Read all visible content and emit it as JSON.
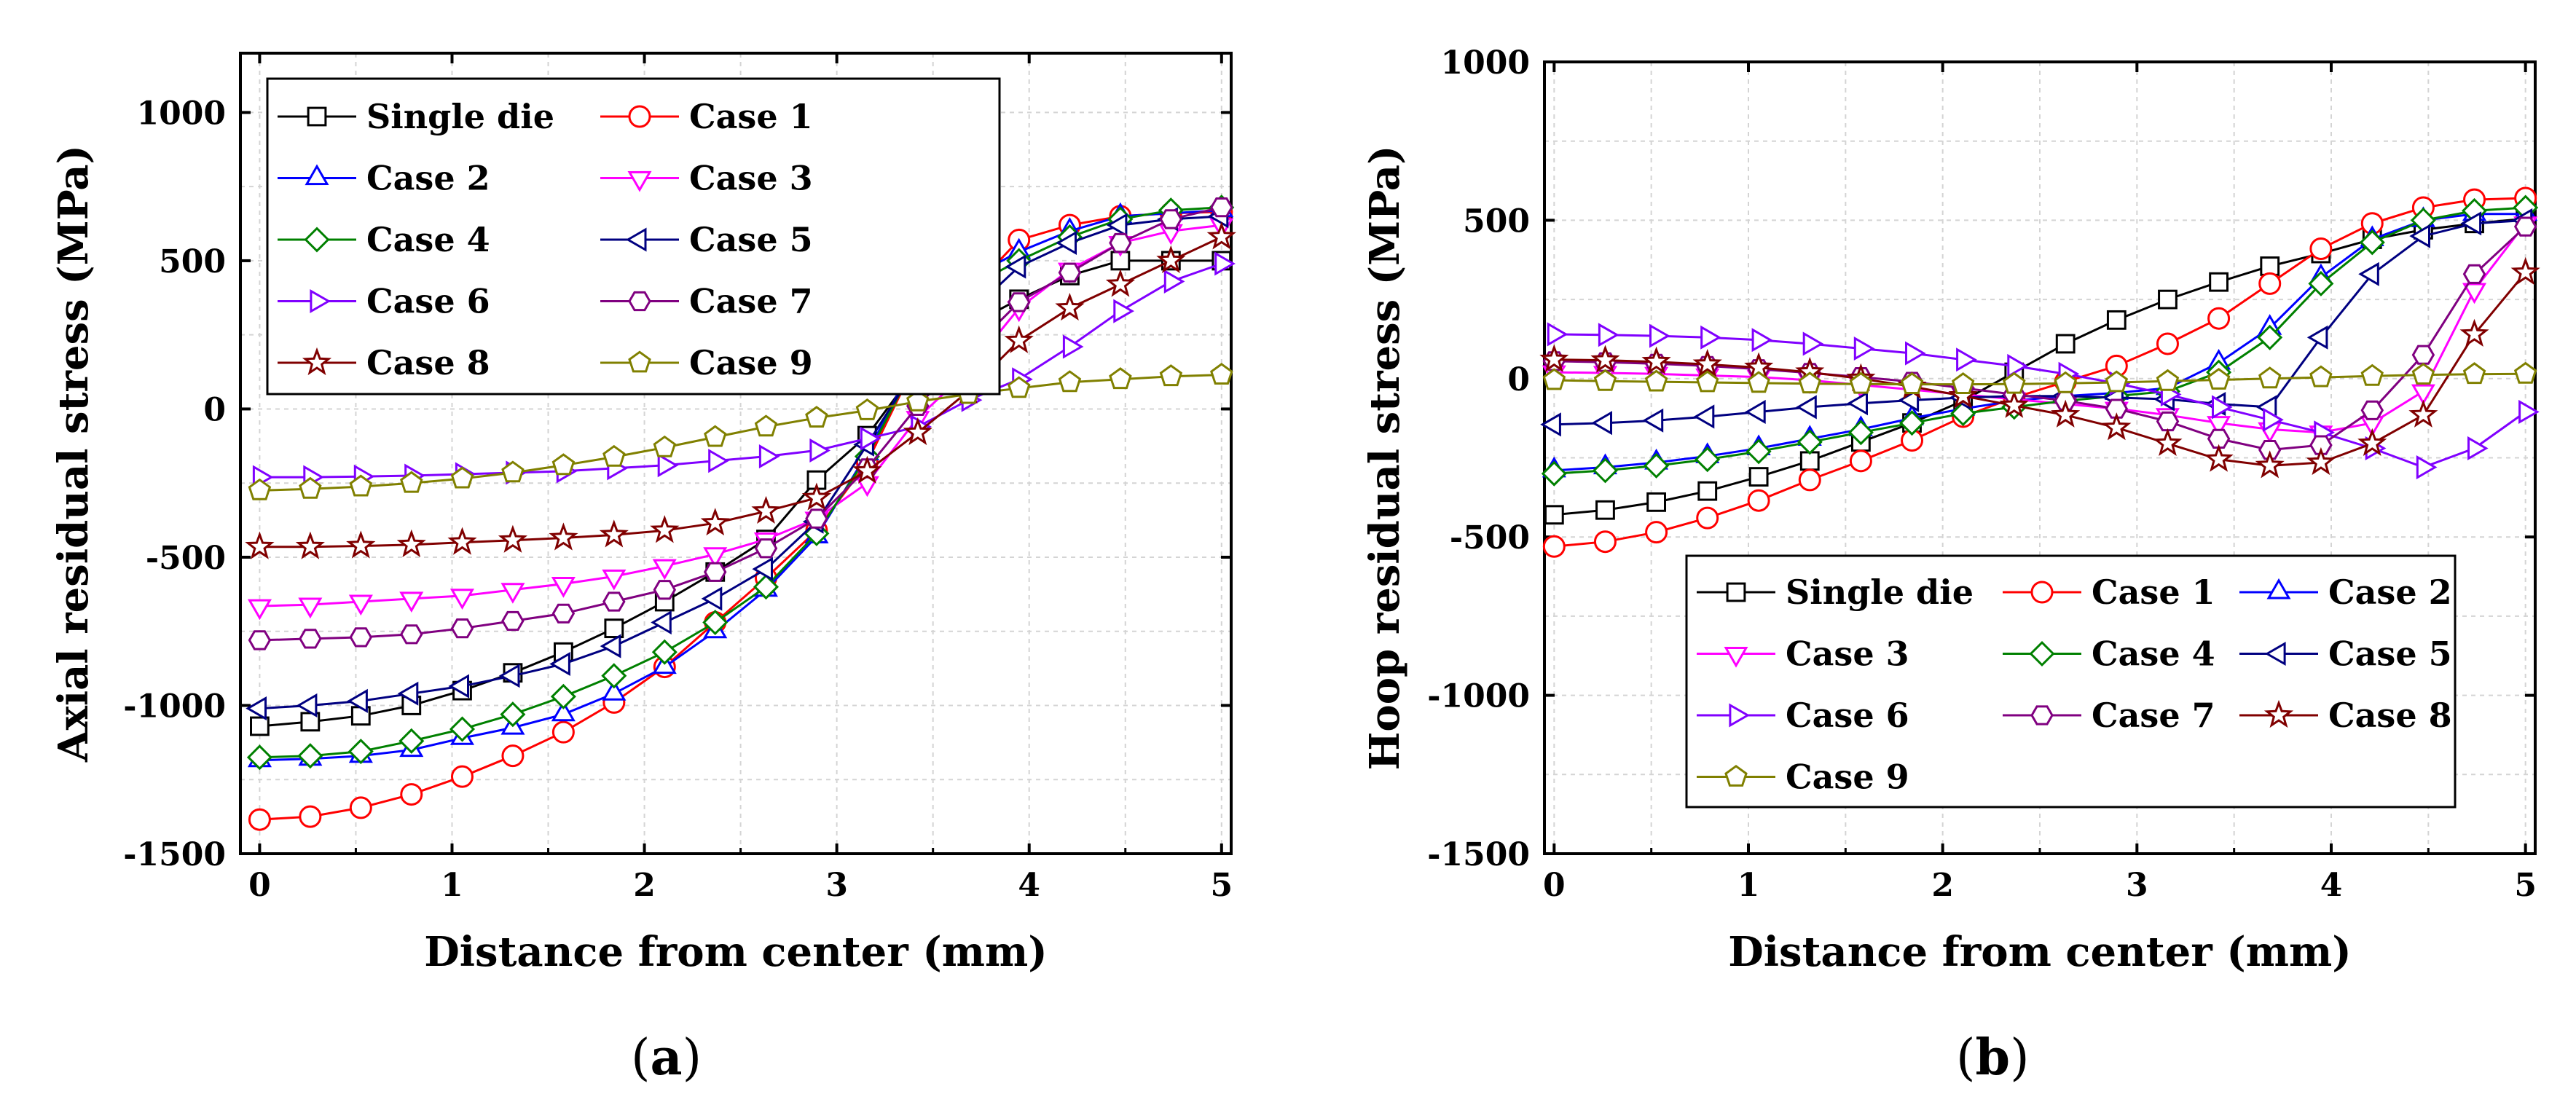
{
  "chart_data": [
    {
      "type": "line",
      "panel_caption": "(a)",
      "caption_letter": "a",
      "xlabel": "Distance from center (mm)",
      "ylabel": "Axial residual stress (MPa)",
      "xlim": [
        -0.1,
        5.05
      ],
      "ylim": [
        -1500,
        1200
      ],
      "xticks": [
        0,
        1,
        2,
        3,
        4,
        5
      ],
      "yticks": [
        -1500,
        -1000,
        -500,
        0,
        500,
        1000
      ],
      "legend_position": "top-left",
      "x": [
        0,
        0.263,
        0.526,
        0.789,
        1.053,
        1.316,
        1.579,
        1.842,
        2.105,
        2.368,
        2.632,
        2.895,
        3.158,
        3.421,
        3.684,
        3.947,
        4.211,
        4.474,
        4.737,
        5.0
      ],
      "series": [
        {
          "name": "Single die",
          "color": "#000000",
          "marker": "square",
          "values": [
            -1070,
            -1055,
            -1035,
            -1000,
            -950,
            -890,
            -820,
            -740,
            -650,
            -550,
            -440,
            -240,
            -90,
            140,
            280,
            370,
            450,
            500,
            500,
            500
          ]
        },
        {
          "name": "Case 1",
          "color": "#ff0000",
          "marker": "circle",
          "values": [
            -1385,
            -1375,
            -1345,
            -1300,
            -1240,
            -1170,
            -1090,
            -990,
            -870,
            -720,
            -570,
            -410,
            -180,
            170,
            390,
            570,
            620,
            650,
            660,
            665
          ]
        },
        {
          "name": "Case 2",
          "color": "#0000ff",
          "marker": "triangle-up",
          "values": [
            -1185,
            -1180,
            -1170,
            -1150,
            -1110,
            -1075,
            -1030,
            -960,
            -870,
            -750,
            -610,
            -430,
            -150,
            180,
            440,
            530,
            600,
            650,
            660,
            670
          ]
        },
        {
          "name": "Case 3",
          "color": "#ff00ff",
          "marker": "triangle-down",
          "values": [
            -665,
            -660,
            -650,
            -640,
            -630,
            -610,
            -590,
            -565,
            -530,
            -490,
            -440,
            -370,
            -250,
            -30,
            130,
            340,
            470,
            560,
            600,
            620
          ]
        },
        {
          "name": "Case 4",
          "color": "#008000",
          "marker": "diamond",
          "values": [
            -1175,
            -1170,
            -1155,
            -1120,
            -1080,
            -1030,
            -970,
            -900,
            -820,
            -720,
            -600,
            -420,
            -160,
            170,
            410,
            500,
            580,
            640,
            670,
            680
          ]
        },
        {
          "name": "Case 5",
          "color": "#000080",
          "marker": "triangle-left",
          "values": [
            -1010,
            -1000,
            -985,
            -960,
            -935,
            -900,
            -860,
            -800,
            -720,
            -640,
            -540,
            -380,
            -120,
            150,
            320,
            480,
            560,
            620,
            640,
            650
          ]
        },
        {
          "name": "Case 6",
          "color": "#8000ff",
          "marker": "triangle-right",
          "values": [
            -230,
            -230,
            -228,
            -225,
            -220,
            -215,
            -210,
            -200,
            -190,
            -175,
            -160,
            -140,
            -100,
            -60,
            30,
            100,
            210,
            330,
            430,
            490
          ]
        },
        {
          "name": "Case 7",
          "color": "#800080",
          "marker": "hexagon",
          "values": [
            -780,
            -775,
            -770,
            -760,
            -740,
            -715,
            -690,
            -650,
            -610,
            -550,
            -470,
            -370,
            -200,
            10,
            190,
            360,
            460,
            560,
            640,
            680
          ]
        },
        {
          "name": "Case 8",
          "color": "#800000",
          "marker": "star",
          "values": [
            -465,
            -465,
            -462,
            -458,
            -450,
            -443,
            -435,
            -425,
            -410,
            -385,
            -345,
            -300,
            -210,
            -80,
            60,
            230,
            340,
            420,
            500,
            580
          ]
        },
        {
          "name": "Case 9",
          "color": "#808000",
          "marker": "pentagon",
          "values": [
            -275,
            -270,
            -262,
            -250,
            -235,
            -215,
            -190,
            -162,
            -130,
            -95,
            -60,
            -30,
            -5,
            25,
            50,
            70,
            90,
            100,
            110,
            115
          ]
        }
      ]
    },
    {
      "type": "line",
      "panel_caption": "(b)",
      "caption_letter": "b",
      "xlabel": "Distance from center (mm)",
      "ylabel": "Hoop residual stress (MPa)",
      "xlim": [
        -0.05,
        5.05
      ],
      "ylim": [
        -1500,
        1000
      ],
      "xticks": [
        0,
        1,
        2,
        3,
        4,
        5
      ],
      "yticks": [
        -1500,
        -1000,
        -500,
        0,
        500,
        1000
      ],
      "legend_position": "bottom-center",
      "x": [
        0,
        0.263,
        0.526,
        0.789,
        1.053,
        1.316,
        1.579,
        1.842,
        2.105,
        2.368,
        2.632,
        2.895,
        3.158,
        3.421,
        3.684,
        3.947,
        4.211,
        4.474,
        4.737,
        5.0
      ],
      "series": [
        {
          "name": "Single die",
          "color": "#000000",
          "marker": "square",
          "values": [
            -430,
            -415,
            -390,
            -355,
            -310,
            -260,
            -200,
            -140,
            -70,
            20,
            110,
            185,
            250,
            305,
            355,
            395,
            440,
            470,
            490,
            505
          ]
        },
        {
          "name": "Case 1",
          "color": "#ff0000",
          "marker": "circle",
          "values": [
            -530,
            -515,
            -485,
            -440,
            -385,
            -320,
            -260,
            -195,
            -120,
            -60,
            -10,
            40,
            110,
            190,
            300,
            410,
            490,
            540,
            565,
            570
          ]
        },
        {
          "name": "Case 2",
          "color": "#0000ff",
          "marker": "triangle-up",
          "values": [
            -290,
            -280,
            -265,
            -245,
            -220,
            -190,
            -160,
            -125,
            -95,
            -70,
            -55,
            -45,
            -30,
            50,
            160,
            320,
            440,
            500,
            520,
            520
          ]
        },
        {
          "name": "Case 3",
          "color": "#ff00ff",
          "marker": "triangle-down",
          "values": [
            20,
            18,
            15,
            10,
            5,
            -5,
            -20,
            -35,
            -50,
            -65,
            -80,
            -95,
            -115,
            -140,
            -160,
            -170,
            -140,
            -40,
            280,
            490
          ]
        },
        {
          "name": "Case 4",
          "color": "#008000",
          "marker": "diamond",
          "values": [
            -300,
            -290,
            -275,
            -255,
            -230,
            -200,
            -170,
            -140,
            -110,
            -90,
            -70,
            -55,
            -40,
            20,
            130,
            300,
            430,
            500,
            530,
            540
          ]
        },
        {
          "name": "Case 5",
          "color": "#000080",
          "marker": "triangle-left",
          "values": [
            -145,
            -140,
            -132,
            -120,
            -105,
            -90,
            -78,
            -68,
            -60,
            -55,
            -55,
            -60,
            -65,
            -80,
            -90,
            130,
            330,
            450,
            490,
            500
          ]
        },
        {
          "name": "Case 6",
          "color": "#8000ff",
          "marker": "triangle-right",
          "values": [
            140,
            138,
            135,
            130,
            122,
            110,
            95,
            80,
            60,
            40,
            15,
            -15,
            -50,
            -90,
            -130,
            -170,
            -220,
            -280,
            -220,
            -105
          ]
        },
        {
          "name": "Case 7",
          "color": "#800080",
          "marker": "hexagon",
          "values": [
            55,
            52,
            47,
            40,
            30,
            18,
            5,
            -10,
            -30,
            -50,
            -70,
            -95,
            -135,
            -190,
            -225,
            -210,
            -100,
            75,
            330,
            480
          ]
        },
        {
          "name": "Case 8",
          "color": "#800000",
          "marker": "star",
          "values": [
            60,
            58,
            53,
            45,
            35,
            20,
            0,
            -25,
            -55,
            -85,
            -115,
            -155,
            -205,
            -255,
            -275,
            -265,
            -205,
            -115,
            140,
            335
          ]
        },
        {
          "name": "Case 9",
          "color": "#808000",
          "marker": "pentagon",
          "values": [
            -5,
            -8,
            -10,
            -12,
            -14,
            -16,
            -17,
            -18,
            -18,
            -17,
            -15,
            -12,
            -8,
            -4,
            0,
            4,
            8,
            12,
            14,
            15
          ]
        }
      ]
    }
  ]
}
